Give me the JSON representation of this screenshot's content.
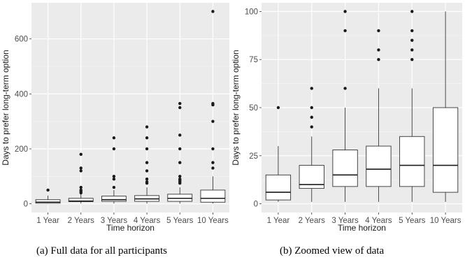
{
  "chart_data": [
    {
      "type": "box",
      "id": "full",
      "xlabel": "Time horizon",
      "ylabel": "Days to prefer long-term option",
      "ylim": [
        0,
        700
      ],
      "yticks": [
        0,
        200,
        400,
        600
      ],
      "grid": true,
      "categories": [
        "1 Year",
        "2 Years",
        "3 Years",
        "4 Years",
        "5 Years",
        "10 Years"
      ],
      "boxes": [
        {
          "min": 1,
          "q1": 2,
          "median": 6,
          "q3": 15,
          "max": 30,
          "outliers": [
            50
          ]
        },
        {
          "min": 1,
          "q1": 8,
          "median": 10,
          "q3": 20,
          "max": 35,
          "outliers": [
            40,
            45,
            50,
            60,
            120,
            130,
            180
          ]
        },
        {
          "min": 1,
          "q1": 9,
          "median": 15,
          "q3": 28,
          "max": 50,
          "outliers": [
            60,
            90,
            100,
            200,
            240
          ]
        },
        {
          "min": 1,
          "q1": 9,
          "median": 18,
          "q3": 30,
          "max": 60,
          "outliers": [
            75,
            80,
            90,
            120,
            150,
            200,
            240,
            280
          ]
        },
        {
          "min": 1,
          "q1": 9,
          "median": 20,
          "q3": 35,
          "max": 60,
          "outliers": [
            75,
            80,
            85,
            90,
            100,
            150,
            200,
            250,
            350,
            365
          ]
        },
        {
          "min": 1,
          "q1": 6,
          "median": 20,
          "q3": 50,
          "max": 100,
          "outliers": [
            130,
            150,
            200,
            300,
            360,
            365,
            700
          ]
        }
      ]
    },
    {
      "type": "box",
      "id": "zoomed",
      "xlabel": "Time horizon",
      "ylabel": "Days to prefer long-term option",
      "ylim": [
        0,
        100
      ],
      "yticks": [
        0,
        25,
        50,
        75,
        100
      ],
      "grid": true,
      "categories": [
        "1 Year",
        "2 Years",
        "3 Years",
        "4 Years",
        "5 Years",
        "10 Years"
      ],
      "boxes": [
        {
          "min": 1,
          "q1": 2,
          "median": 6,
          "q3": 15,
          "max": 30,
          "outliers": [
            50
          ]
        },
        {
          "min": 1,
          "q1": 8,
          "median": 10,
          "q3": 20,
          "max": 35,
          "outliers": [
            40,
            45,
            50,
            60
          ]
        },
        {
          "min": 1,
          "q1": 9,
          "median": 15,
          "q3": 28,
          "max": 50,
          "outliers": [
            60,
            90,
            100
          ]
        },
        {
          "min": 1,
          "q1": 9,
          "median": 18,
          "q3": 30,
          "max": 60,
          "outliers": [
            75,
            80,
            90
          ]
        },
        {
          "min": 1,
          "q1": 9,
          "median": 20,
          "q3": 35,
          "max": 60,
          "outliers": [
            75,
            80,
            85,
            90,
            100
          ]
        },
        {
          "min": 1,
          "q1": 6,
          "median": 20,
          "q3": 50,
          "max": 100,
          "outliers": []
        }
      ]
    }
  ],
  "captions": [
    "(a) Full data for all participants",
    "(b) Zoomed view of data"
  ]
}
